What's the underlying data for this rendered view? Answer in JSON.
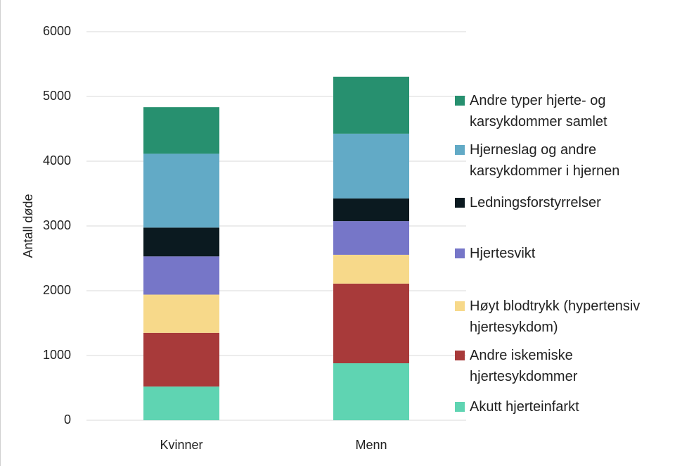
{
  "chart_data": {
    "type": "stacked_bar",
    "y_label": "Antall døde",
    "categories": [
      "Kvinner",
      "Menn"
    ],
    "series": [
      {
        "name": "Akutt hjerteinfarkt",
        "color": "#5fd4b2",
        "values": [
          520,
          880
        ]
      },
      {
        "name": "Andre iskemiske hjertesykdommer",
        "color": "#a83a3a",
        "values": [
          830,
          1230
        ]
      },
      {
        "name": "Høyt blodtrykk (hypertensiv hjertesykdom)",
        "color": "#f7d98a",
        "values": [
          590,
          445
        ]
      },
      {
        "name": "Hjertesvikt",
        "color": "#7676c8",
        "values": [
          590,
          520
        ]
      },
      {
        "name": "Ledningsforstyrrelser",
        "color": "#0b1a20",
        "values": [
          445,
          350
        ]
      },
      {
        "name": "Hjerneslag og andre karsykdommer i hjernen",
        "color": "#62aac6",
        "values": [
          1140,
          1000
        ]
      },
      {
        "name": "Andre typer hjerte- og karsykdommer samlet",
        "color": "#27906f",
        "values": [
          720,
          880
        ]
      }
    ],
    "ylim": [
      0,
      6000
    ],
    "yticks": [
      0,
      1000,
      2000,
      3000,
      4000,
      5000,
      6000
    ],
    "grid": true
  }
}
